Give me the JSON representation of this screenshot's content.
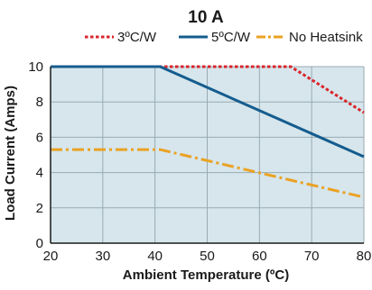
{
  "chart_data": {
    "type": "line",
    "title": "10 A",
    "xlabel": "Ambient Temperature (ºC)",
    "ylabel": "Load Current (Amps)",
    "xlim": [
      20,
      80
    ],
    "ylim": [
      0,
      10
    ],
    "xticks": [
      20,
      30,
      40,
      50,
      60,
      70,
      80
    ],
    "yticks": [
      0,
      2,
      4,
      6,
      8,
      10
    ],
    "grid": true,
    "plot_background": "#d6e6ec",
    "legend_position": "top",
    "series": [
      {
        "name": "3ºC/W",
        "color": "#d9262b",
        "style": "dotted",
        "points": [
          [
            20,
            10
          ],
          [
            66,
            10
          ],
          [
            80,
            7.4
          ]
        ]
      },
      {
        "name": "5ºC/W",
        "color": "#155c8e",
        "style": "solid",
        "points": [
          [
            20,
            10
          ],
          [
            41,
            10
          ],
          [
            80,
            4.9
          ]
        ]
      },
      {
        "name": "No Heatsink",
        "color": "#eba223",
        "style": "dashdot",
        "points": [
          [
            20,
            5.3
          ],
          [
            41,
            5.3
          ],
          [
            80,
            2.6
          ]
        ]
      }
    ]
  }
}
